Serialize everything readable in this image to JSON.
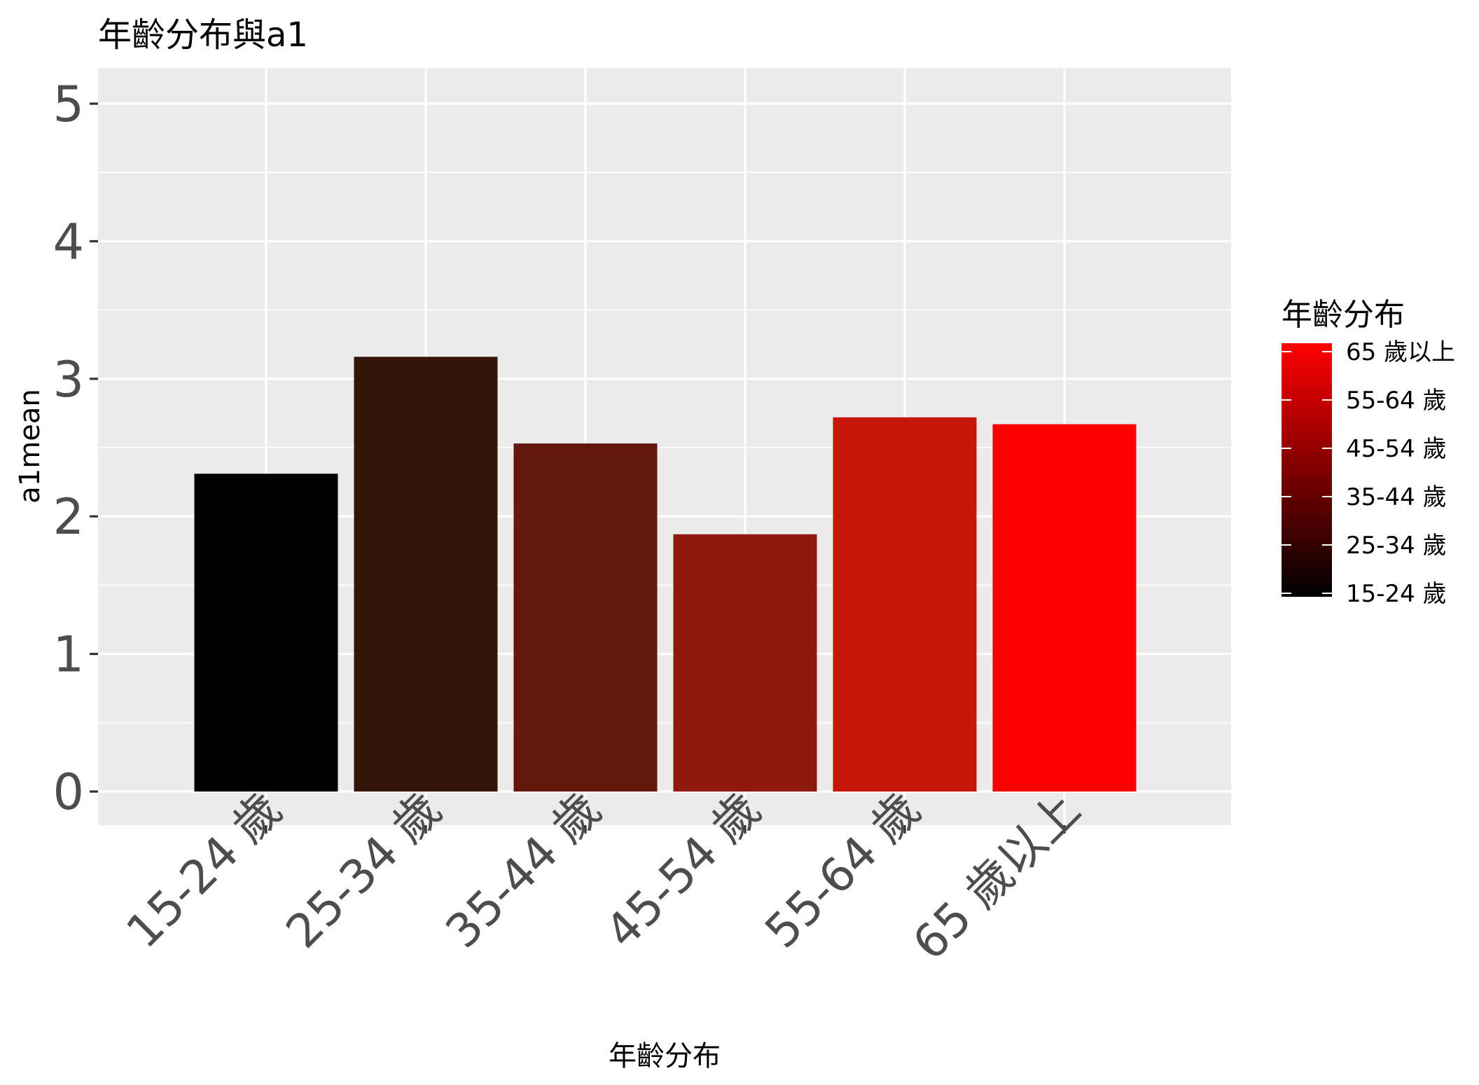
{
  "chart_data": {
    "type": "bar",
    "title": "年齡分布與a1",
    "xlabel": "年齡分布",
    "ylabel": "a1mean",
    "categories": [
      "15-24 歲",
      "25-34 歲",
      "35-44 歲",
      "45-54 歲",
      "55-64 歲",
      "65 歲以上"
    ],
    "values": [
      2.31,
      3.16,
      2.53,
      1.87,
      2.72,
      2.67
    ],
    "bar_colors": [
      "#000000",
      "#341409",
      "#63180c",
      "#8e190c",
      "#c6160a",
      "#ff0000"
    ],
    "ylim": [
      0,
      5
    ],
    "y_ticks": [
      0,
      1,
      2,
      3,
      4,
      5
    ],
    "y_tick_labels": [
      "0",
      "1",
      "2",
      "3",
      "4",
      "5"
    ],
    "grid": true,
    "legend": {
      "title": "年齡分布",
      "position": "right",
      "gradient": [
        "#000000",
        "#ff0000"
      ],
      "labels": [
        "65 歲以上",
        "55-64 歲",
        "45-54 歲",
        "35-44 歲",
        "25-34 歲",
        "15-24 歲"
      ]
    }
  }
}
